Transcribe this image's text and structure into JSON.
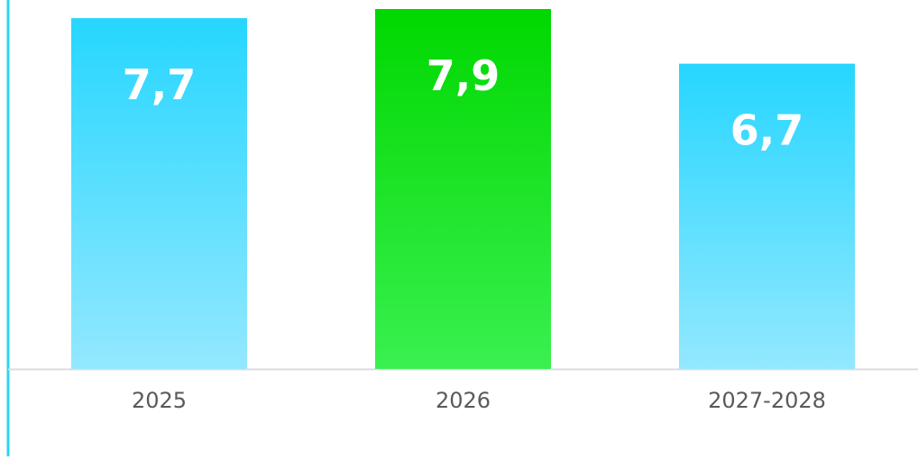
{
  "chart_data": {
    "type": "bar",
    "categories": [
      "2025",
      "2026",
      "2027-2028"
    ],
    "values": [
      7.7,
      7.9,
      6.7
    ],
    "value_labels": [
      "7,7",
      "7,9",
      "6,7"
    ],
    "ylim": [
      0,
      7.9
    ],
    "grid": false,
    "legend": "none",
    "title": "",
    "xlabel": "",
    "ylabel": ""
  },
  "colors": {
    "bar_default_top": "#26D6FF",
    "bar_default_bottom": "#93E8FF",
    "bar_highlight_top": "#00D800",
    "bar_highlight_bottom": "#3AF050",
    "highlight_index": 1,
    "left_accent_line": "#2BD4F2",
    "baseline": "#D9DCDF",
    "value_label": "#FFFFFF",
    "category_label": "#5A5A5A"
  }
}
